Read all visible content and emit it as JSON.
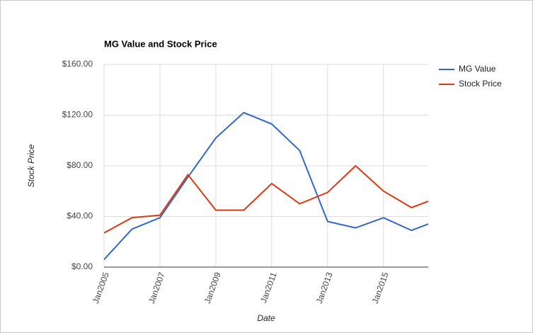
{
  "chart_data": {
    "type": "line",
    "title": "MG Value and Stock Price",
    "x_label": "Date",
    "y_label": "Stock Price",
    "x": [
      2005,
      2006,
      2007,
      2008,
      2009,
      2010,
      2011,
      2012,
      2013,
      2014,
      2015,
      2016,
      2016.6
    ],
    "series": [
      {
        "name": "MG Value",
        "color": "#3366cc",
        "values": [
          6,
          30,
          39,
          71,
          102,
          122,
          113,
          92,
          36,
          31,
          39,
          29,
          34
        ]
      },
      {
        "name": "Stock Price",
        "color": "#dc3912",
        "values": [
          27,
          39,
          41,
          73,
          45,
          45,
          66,
          50,
          59,
          80,
          60,
          47,
          52
        ]
      }
    ],
    "xlim": [
      2005,
      2016.6
    ],
    "xticks": [
      {
        "value": 2005,
        "label": "Jan2005"
      },
      {
        "value": 2007,
        "label": "Jan2007"
      },
      {
        "value": 2009,
        "label": "Jan2009"
      },
      {
        "value": 2011,
        "label": "Jan2011"
      },
      {
        "value": 2013,
        "label": "Jan2013"
      },
      {
        "value": 2015,
        "label": "Jan2015"
      }
    ],
    "ylim": [
      0,
      160
    ],
    "yticks": [
      {
        "value": 0,
        "label": "$0.00"
      },
      {
        "value": 40,
        "label": "$40.00"
      },
      {
        "value": 80,
        "label": "$80.00"
      },
      {
        "value": 120,
        "label": "$120.00"
      },
      {
        "value": 160,
        "label": "$160.00"
      }
    ],
    "grid": true,
    "legend": "right"
  }
}
